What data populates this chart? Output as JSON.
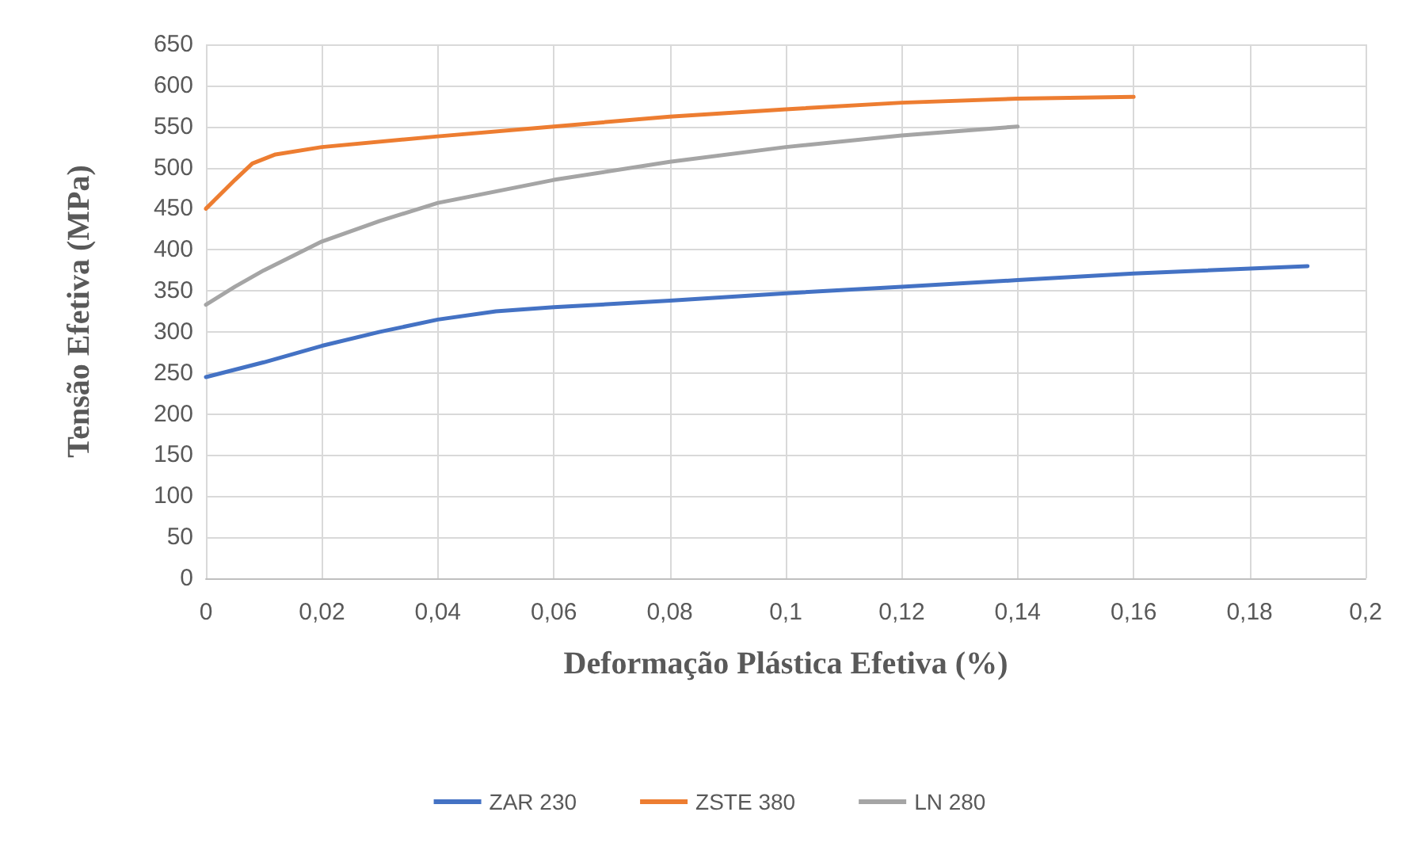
{
  "chart_data": {
    "type": "line",
    "xlabel": "Deformação Plástica Efetiva (%)",
    "ylabel": "Tensão Efetiva (MPa)",
    "xlim": [
      0,
      0.2
    ],
    "xticks": [
      0,
      {
        "value": 0.02,
        "label": "0,02"
      },
      {
        "value": 0.04,
        "label": "0,04"
      },
      {
        "value": 0.06,
        "label": "0,06"
      },
      {
        "value": 0.08,
        "label": "0,08"
      },
      {
        "value": 0.1,
        "label": "0,1"
      },
      {
        "value": 0.12,
        "label": "0,12"
      },
      {
        "value": 0.14,
        "label": "0,14"
      },
      {
        "value": 0.16,
        "label": "0,16"
      },
      {
        "value": 0.18,
        "label": "0,18"
      },
      {
        "value": 0.2,
        "label": "0,2"
      }
    ],
    "ylim": [
      0,
      650
    ],
    "yticks": [
      0,
      50,
      100,
      150,
      200,
      250,
      300,
      350,
      400,
      450,
      500,
      550,
      600,
      650
    ],
    "grid": true,
    "legend": "bottom",
    "marker": "none",
    "line_style": "solid",
    "series": [
      {
        "name": "ZAR 230",
        "color": "#4472c4",
        "x": [
          0,
          0.01,
          0.02,
          0.03,
          0.04,
          0.05,
          0.06,
          0.08,
          0.1,
          0.12,
          0.14,
          0.16,
          0.19
        ],
        "values": [
          245,
          263,
          283,
          300,
          315,
          325,
          330,
          338,
          347,
          355,
          363,
          371,
          380
        ]
      },
      {
        "name": "ZSTE 380",
        "color": "#ed7d31",
        "x": [
          0,
          0.005,
          0.008,
          0.012,
          0.02,
          0.04,
          0.06,
          0.08,
          0.1,
          0.12,
          0.14,
          0.16
        ],
        "values": [
          450,
          485,
          505,
          516,
          525,
          538,
          550,
          562,
          571,
          579,
          584,
          586
        ]
      },
      {
        "name": "LN 280",
        "color": "#a5a5a5",
        "x": [
          0,
          0.005,
          0.01,
          0.02,
          0.03,
          0.04,
          0.06,
          0.08,
          0.1,
          0.12,
          0.14
        ],
        "values": [
          333,
          355,
          375,
          410,
          435,
          457,
          485,
          507,
          525,
          539,
          550
        ]
      }
    ]
  }
}
